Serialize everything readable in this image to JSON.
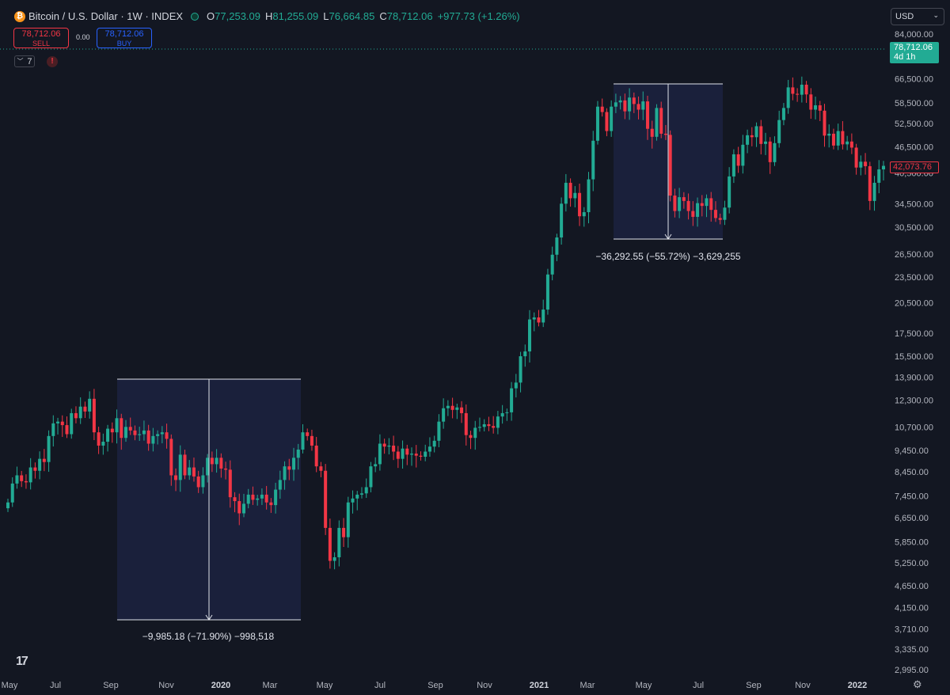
{
  "header": {
    "symbol": "Bitcoin / U.S. Dollar · 1W · INDEX",
    "logo_icon": "bitcoin-icon",
    "o_label": "O",
    "o_value": "77,253.09",
    "h_label": "H",
    "h_value": "81,255.09",
    "l_label": "L",
    "l_value": "76,664.85",
    "c_label": "C",
    "c_value": "78,712.06",
    "change": "+977.73 (+1.26%)"
  },
  "trade": {
    "sell_price": "78,712.06",
    "sell_label": "SELL",
    "spread": "0.00",
    "buy_price": "78,712.06",
    "buy_label": "BUY"
  },
  "indicators": {
    "count": "7",
    "alert_icon": "alert-icon"
  },
  "currency": {
    "label": "USD"
  },
  "last_price": {
    "value": "78,712.06",
    "countdown": "4d 1h"
  },
  "crosshair_price": "42,073.76",
  "colors": {
    "up": "#22ab94",
    "down": "#f23645",
    "background": "#131722",
    "range_fill": "#1c2240"
  },
  "chart_data": {
    "type": "candlestick",
    "y_scale": "log",
    "ylim": [
      2800,
      90000
    ],
    "y_ticks": [
      "84,000.00",
      "66,500.00",
      "58,500.00",
      "52,500.00",
      "46,500.00",
      "40,500.00",
      "34,500.00",
      "30,500.00",
      "26,500.00",
      "23,500.00",
      "20,500.00",
      "17,500.00",
      "15,500.00",
      "13,900.00",
      "12,300.00",
      "10,700.00",
      "9,450.00",
      "8,450.00",
      "7,450.00",
      "6,650.00",
      "5,850.00",
      "5,250.00",
      "4,650.00",
      "4,150.00",
      "3,710.00",
      "3,335.00",
      "2,995.00"
    ],
    "x_ticks": [
      "May",
      "Jul",
      "Sep",
      "Nov",
      "2020",
      "Mar",
      "May",
      "Jul",
      "Sep",
      "Nov",
      "2021",
      "Mar",
      "May",
      "Jul",
      "Sep",
      "Nov",
      "2022"
    ],
    "candles_weekly_close": [
      7200,
      7950,
      8300,
      8050,
      8000,
      8650,
      8500,
      9050,
      8900,
      10200,
      10900,
      11000,
      10800,
      10300,
      11500,
      11200,
      11900,
      11600,
      12400,
      10400,
      9700,
      9900,
      10600,
      10400,
      11200,
      10100,
      10700,
      10500,
      10250,
      10300,
      10500,
      9800,
      10200,
      10300,
      10400,
      10050,
      8300,
      8100,
      9250,
      8300,
      8650,
      8250,
      7800,
      8300,
      9100,
      8800,
      9100,
      8600,
      8550,
      7400,
      7250,
      6800,
      7150,
      7500,
      7300,
      7350,
      7500,
      7200,
      7100,
      7700,
      8100,
      8700,
      8550,
      9100,
      9500,
      10400,
      10200,
      9700,
      8700,
      8500,
      6300,
      5300,
      5400,
      6300,
      6000,
      7200,
      7350,
      7500,
      7550,
      7800,
      8700,
      8800,
      9800,
      9650,
      9700,
      9400,
      9050,
      9550,
      9250,
      9300,
      9200,
      9150,
      9400,
      9650,
      9950,
      11000,
      11800,
      11950,
      11700,
      11850,
      11500,
      10250,
      10100,
      10650,
      10700,
      10850,
      10750,
      10650,
      11300,
      11500,
      11550,
      13100,
      13500,
      15500,
      15900,
      18800,
      19000,
      18500,
      19800,
      23800,
      26400,
      28900,
      34500,
      38500,
      35500,
      36500,
      32300,
      33000,
      39200,
      48000,
      57400,
      55800,
      50500,
      57400,
      58700,
      59300,
      56000,
      60200,
      58200,
      56500,
      59000,
      51100,
      49000,
      57000,
      49800,
      49500,
      36000,
      33200,
      35700,
      35000,
      33200,
      32200,
      34600,
      34100,
      35500,
      33400,
      32000,
      31700,
      33800,
      39800,
      44700,
      42100,
      47000,
      49400,
      48900,
      51800,
      47200,
      47800,
      42900,
      47400,
      53500,
      57000,
      63500,
      61400,
      61100,
      64400,
      61200,
      56500,
      57800,
      56200,
      49300,
      49800,
      46800,
      50500,
      47100,
      47800,
      46300,
      41700,
      43000,
      42000,
      35000,
      38500,
      41300,
      42073.76
    ]
  },
  "measurements": {
    "first": "−9,985.18 (−71.90%) −998,518",
    "second": "−36,292.55 (−55.72%) −3,629,255"
  },
  "footer": {
    "logo_text": "TV",
    "settings_icon": "gear-icon"
  }
}
